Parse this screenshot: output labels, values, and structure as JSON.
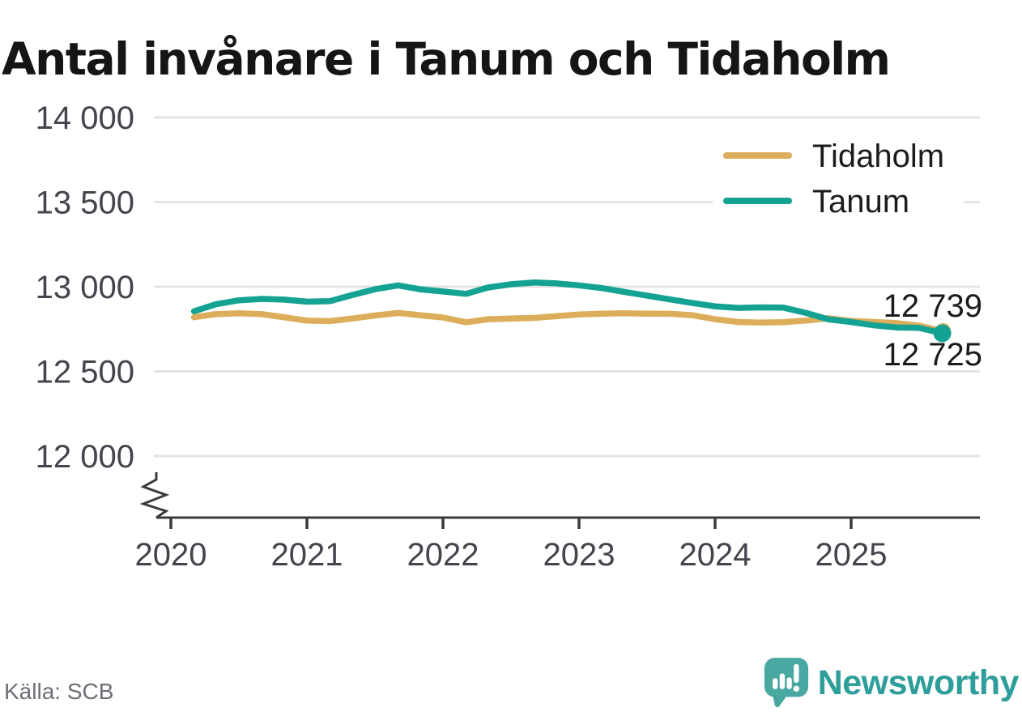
{
  "title": "Antal invånare i Tanum och Tidaholm",
  "source": "Källa: SCB",
  "logo": {
    "text": "Newsworthy"
  },
  "colors": {
    "series_tidaholm": "#dcae5b",
    "series_tanum": "#14a292",
    "grid": "#e4e4e4",
    "axis": "#3b3b3b",
    "tick_label": "#44444c",
    "end_label": "#1b1b1b",
    "legend_label": "#1c1c1c",
    "logo_teal": "#4aa8a3",
    "logo_teal_dark": "#3d948e",
    "logo_text_teal": "#2e9e9b"
  },
  "legend": {
    "items": [
      {
        "label": "Tidaholm",
        "color_key": "series_tidaholm"
      },
      {
        "label": "Tanum",
        "color_key": "series_tanum"
      }
    ],
    "position": "top-right"
  },
  "chart_data": {
    "type": "line",
    "title": "Antal invånare i Tanum och Tidaholm",
    "xlabel": "",
    "ylabel": "",
    "x_unit": "decimal year (monthly population data)",
    "xticks": [
      2020,
      2021,
      2022,
      2023,
      2024,
      2025
    ],
    "xtick_labels": [
      "2020",
      "2021",
      "2022",
      "2023",
      "2024",
      "2025"
    ],
    "yticks": [
      12000,
      12500,
      13000,
      13500,
      14000
    ],
    "ytick_labels": [
      "12 000",
      "12 500",
      "13 000",
      "13 500",
      "14 000"
    ],
    "ylim": [
      11900,
      14100
    ],
    "axis_break": true,
    "grid": "horizontal",
    "legend_position": "top-right",
    "series": [
      {
        "name": "Tidaholm",
        "color_key": "series_tidaholm",
        "end_value": 12739,
        "end_label": "12 739",
        "end_dot": true,
        "points": [
          [
            2020.17,
            12820
          ],
          [
            2020.33,
            12838
          ],
          [
            2020.5,
            12843
          ],
          [
            2020.67,
            12838
          ],
          [
            2020.83,
            12820
          ],
          [
            2021.0,
            12800
          ],
          [
            2021.17,
            12797
          ],
          [
            2021.33,
            12812
          ],
          [
            2021.5,
            12830
          ],
          [
            2021.67,
            12845
          ],
          [
            2021.83,
            12832
          ],
          [
            2022.0,
            12818
          ],
          [
            2022.17,
            12790
          ],
          [
            2022.33,
            12808
          ],
          [
            2022.5,
            12812
          ],
          [
            2022.67,
            12816
          ],
          [
            2022.83,
            12826
          ],
          [
            2023.0,
            12836
          ],
          [
            2023.17,
            12841
          ],
          [
            2023.33,
            12843
          ],
          [
            2023.5,
            12841
          ],
          [
            2023.67,
            12840
          ],
          [
            2023.83,
            12832
          ],
          [
            2024.0,
            12808
          ],
          [
            2024.17,
            12792
          ],
          [
            2024.33,
            12788
          ],
          [
            2024.5,
            12791
          ],
          [
            2024.67,
            12800
          ],
          [
            2024.83,
            12814
          ],
          [
            2025.0,
            12798
          ],
          [
            2025.17,
            12792
          ],
          [
            2025.33,
            12785
          ],
          [
            2025.5,
            12770
          ],
          [
            2025.67,
            12739
          ]
        ]
      },
      {
        "name": "Tanum",
        "color_key": "series_tanum",
        "end_value": 12725,
        "end_label": "12 725",
        "end_dot": true,
        "points": [
          [
            2020.17,
            12855
          ],
          [
            2020.33,
            12896
          ],
          [
            2020.5,
            12920
          ],
          [
            2020.67,
            12928
          ],
          [
            2020.83,
            12924
          ],
          [
            2021.0,
            12912
          ],
          [
            2021.17,
            12915
          ],
          [
            2021.33,
            12950
          ],
          [
            2021.5,
            12985
          ],
          [
            2021.67,
            13008
          ],
          [
            2021.83,
            12985
          ],
          [
            2022.0,
            12972
          ],
          [
            2022.17,
            12958
          ],
          [
            2022.33,
            12995
          ],
          [
            2022.5,
            13015
          ],
          [
            2022.67,
            13025
          ],
          [
            2022.83,
            13020
          ],
          [
            2023.0,
            13008
          ],
          [
            2023.17,
            12992
          ],
          [
            2023.33,
            12970
          ],
          [
            2023.5,
            12948
          ],
          [
            2023.67,
            12925
          ],
          [
            2023.83,
            12905
          ],
          [
            2024.0,
            12884
          ],
          [
            2024.17,
            12875
          ],
          [
            2024.33,
            12878
          ],
          [
            2024.5,
            12877
          ],
          [
            2024.67,
            12845
          ],
          [
            2024.83,
            12808
          ],
          [
            2025.0,
            12792
          ],
          [
            2025.17,
            12772
          ],
          [
            2025.33,
            12760
          ],
          [
            2025.5,
            12757
          ],
          [
            2025.67,
            12725
          ]
        ]
      }
    ]
  }
}
